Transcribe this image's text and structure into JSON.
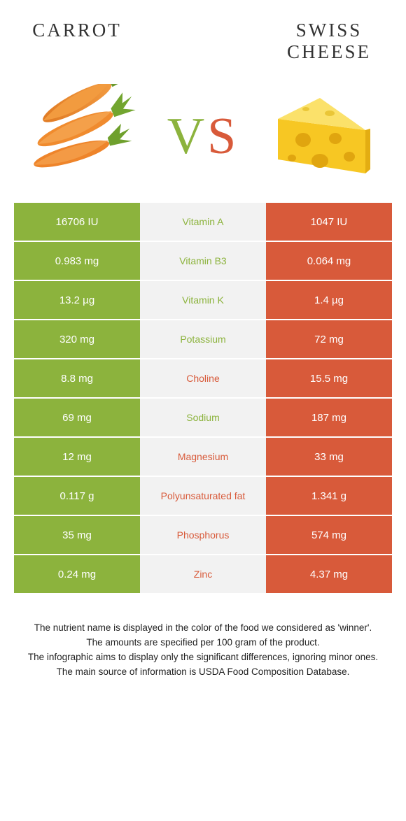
{
  "colors": {
    "food1": "#8cb33d",
    "food2": "#d85a3a",
    "cell_mid_bg": "#f2f2f2",
    "cell_text_white": "#ffffff",
    "vs_v": "#8cb33d",
    "vs_s": "#d85a3a"
  },
  "header": {
    "food1_name": "Carrot",
    "food2_name": "Swiss Cheese"
  },
  "vs_label": {
    "v": "V",
    "s": "S"
  },
  "rows": [
    {
      "nutrient": "Vitamin A",
      "left": "16706 IU",
      "right": "1047 IU",
      "winner": 1
    },
    {
      "nutrient": "Vitamin B3",
      "left": "0.983 mg",
      "right": "0.064 mg",
      "winner": 1
    },
    {
      "nutrient": "Vitamin K",
      "left": "13.2 µg",
      "right": "1.4 µg",
      "winner": 1
    },
    {
      "nutrient": "Potassium",
      "left": "320 mg",
      "right": "72 mg",
      "winner": 1
    },
    {
      "nutrient": "Choline",
      "left": "8.8 mg",
      "right": "15.5 mg",
      "winner": 2
    },
    {
      "nutrient": "Sodium",
      "left": "69 mg",
      "right": "187 mg",
      "winner": 1
    },
    {
      "nutrient": "Magnesium",
      "left": "12 mg",
      "right": "33 mg",
      "winner": 2
    },
    {
      "nutrient": "Polyunsaturated fat",
      "left": "0.117 g",
      "right": "1.341 g",
      "winner": 2
    },
    {
      "nutrient": "Phosphorus",
      "left": "35 mg",
      "right": "574 mg",
      "winner": 2
    },
    {
      "nutrient": "Zinc",
      "left": "0.24 mg",
      "right": "4.37 mg",
      "winner": 2
    }
  ],
  "footnotes": {
    "l1": "The nutrient name is displayed in the color of the food we considered as 'winner'.",
    "l2": "The amounts are specified per 100 gram of the product.",
    "l3": "The infographic aims to display only the significant differences, ignoring minor ones.",
    "l4": "The main source of information is USDA Food Composition Database."
  }
}
